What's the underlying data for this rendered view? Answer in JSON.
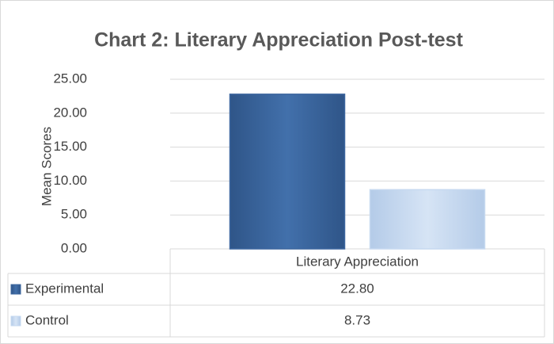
{
  "chart_data": {
    "type": "bar",
    "title": "Chart 2: Literary Appreciation Post-test",
    "y_label": "Mean Scores",
    "categories": [
      "Literary Appreciation"
    ],
    "series": [
      {
        "name": "Experimental",
        "color": "#3d679f",
        "values": [
          22.8
        ],
        "value_labels": [
          "22.80"
        ]
      },
      {
        "name": "Control",
        "color": "#c6d9f0",
        "values": [
          8.73
        ],
        "value_labels": [
          "8.73"
        ]
      }
    ],
    "ylim": [
      0,
      25
    ],
    "yticks": [
      {
        "value": 0,
        "label": "0.00"
      },
      {
        "value": 5,
        "label": "5.00"
      },
      {
        "value": 10,
        "label": "10.00"
      },
      {
        "value": 15,
        "label": "15.00"
      },
      {
        "value": 20,
        "label": "20.00"
      },
      {
        "value": 25,
        "label": "25.00"
      }
    ],
    "grid": true,
    "data_table": true
  }
}
